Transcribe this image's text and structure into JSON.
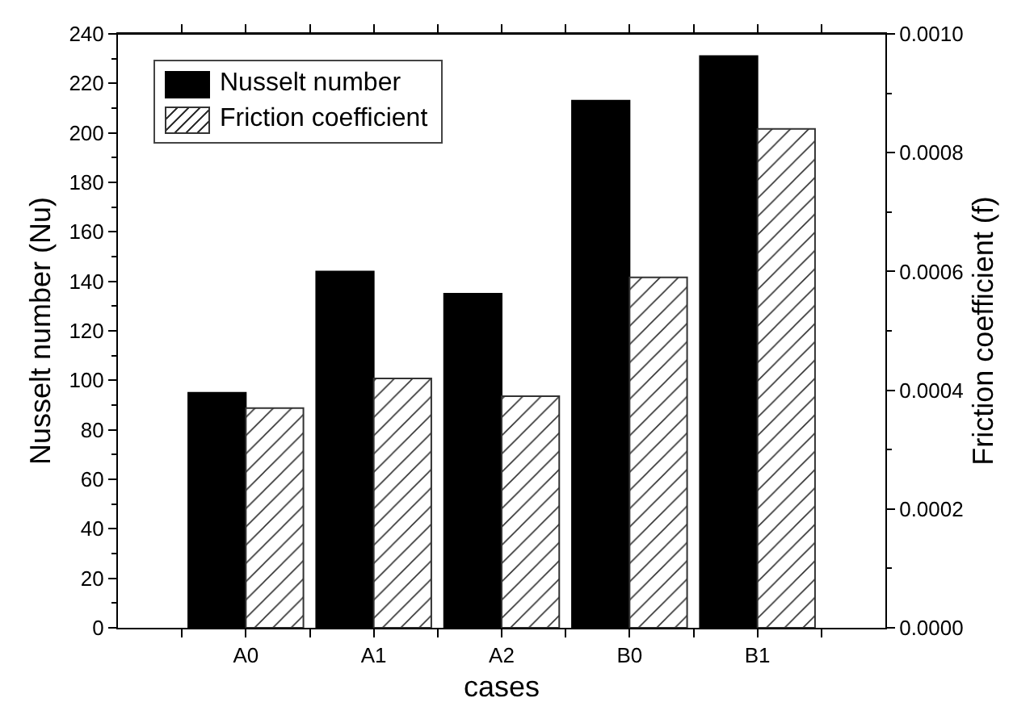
{
  "chart_data": {
    "type": "bar",
    "xlabel": "cases",
    "ylabel": "Nusselt number (Nu)",
    "y2label": "Friction coefficient (f)",
    "categories": [
      null,
      "A0",
      "A1",
      "A2",
      "B0",
      "B1",
      null
    ],
    "series": [
      {
        "name": "Nusselt number",
        "color": "#000000",
        "values": [
          null,
          95,
          144,
          135,
          213,
          231,
          null
        ]
      },
      {
        "name": "Friction coefficient",
        "color": "#333333",
        "axis": "y2",
        "values": [
          null,
          0.00037,
          0.00042,
          0.00039,
          0.00059,
          0.00084,
          null
        ]
      }
    ],
    "ylim": [
      0,
      240
    ],
    "yticks": [
      0,
      20,
      40,
      60,
      80,
      100,
      120,
      140,
      160,
      180,
      200,
      220,
      240
    ],
    "y2lim": [
      0,
      0.001
    ],
    "y2ticks": [
      {
        "value": 0,
        "label": "0.0000"
      },
      {
        "value": 0.0002,
        "label": "0.0002"
      },
      {
        "value": 0.0004,
        "label": "0.0004"
      },
      {
        "value": 0.0006,
        "label": "0.0006"
      },
      {
        "value": 0.0008,
        "label": "0.0008"
      },
      {
        "value": 0.001,
        "label": "0.0010"
      }
    ],
    "grid": false,
    "legend": "top left"
  }
}
